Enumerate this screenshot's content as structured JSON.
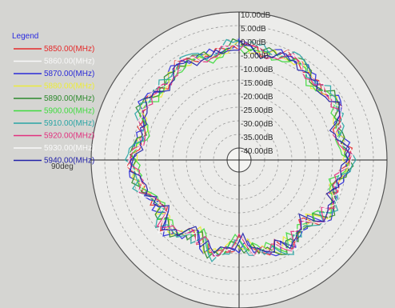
{
  "chart_data": {
    "type": "polar",
    "title": "",
    "radial_axis": {
      "unit": "dB",
      "range": [
        -40,
        10
      ],
      "tick_labels": [
        "10.00dB",
        "5.00dB",
        "0.00dB",
        "-5.00dB",
        "-10.00dB",
        "-15.00dB",
        "-20.00dB",
        "-25.00dB",
        "-30.00dB",
        "-35.00dB",
        "-40.00dB"
      ],
      "tick_values": [
        10,
        5,
        0,
        -5,
        -10,
        -15,
        -20,
        -25,
        -30,
        -35,
        -40
      ]
    },
    "angle_label": "90deg",
    "legend": {
      "title": "Legend",
      "placement": "top-left"
    },
    "series": [
      {
        "name": "5850.00(MHz)",
        "color": "#e52a2a",
        "offset": 0.2,
        "phase": 0.4
      },
      {
        "name": "5860.00(MHz)",
        "color": "#f8f8f8",
        "offset": -0.6,
        "phase": 1.1
      },
      {
        "name": "5870.00(MHz)",
        "color": "#2b2bd8",
        "offset": 0.7,
        "phase": 1.9
      },
      {
        "name": "5880.00(MHz)",
        "color": "#ecec3a",
        "offset": -0.3,
        "phase": 2.6
      },
      {
        "name": "5890.00(MHz)",
        "color": "#2d8a2d",
        "offset": 0.5,
        "phase": 3.3
      },
      {
        "name": "5900.00(MHz)",
        "color": "#3fdc3f",
        "offset": -0.9,
        "phase": 4.0
      },
      {
        "name": "5910.00(MHz)",
        "color": "#2aa5a5",
        "offset": 1.0,
        "phase": 4.7
      },
      {
        "name": "5920.00(MHz)",
        "color": "#e2307e",
        "offset": -0.2,
        "phase": 5.4
      },
      {
        "name": "5930.00(MHz)",
        "color": "#fafafa",
        "offset": 0.4,
        "phase": 6.0
      },
      {
        "name": "5940.00(MHz)",
        "color": "#2222a8",
        "offset": -0.5,
        "phase": 0.9
      }
    ],
    "pattern_shape": {
      "angles_deg": [
        0,
        15,
        30,
        45,
        60,
        75,
        90,
        105,
        120,
        135,
        150,
        165,
        180,
        195,
        210,
        225,
        240,
        255,
        270,
        285,
        300,
        315,
        330,
        345
      ],
      "values_db": [
        -2,
        -4,
        -2,
        -5,
        -3,
        -7,
        -4,
        -8,
        -6,
        -11,
        -8,
        -10,
        -14,
        -9,
        -13,
        -8,
        -11,
        -7,
        -5,
        -8,
        -4,
        -6,
        -3,
        -5
      ]
    }
  }
}
